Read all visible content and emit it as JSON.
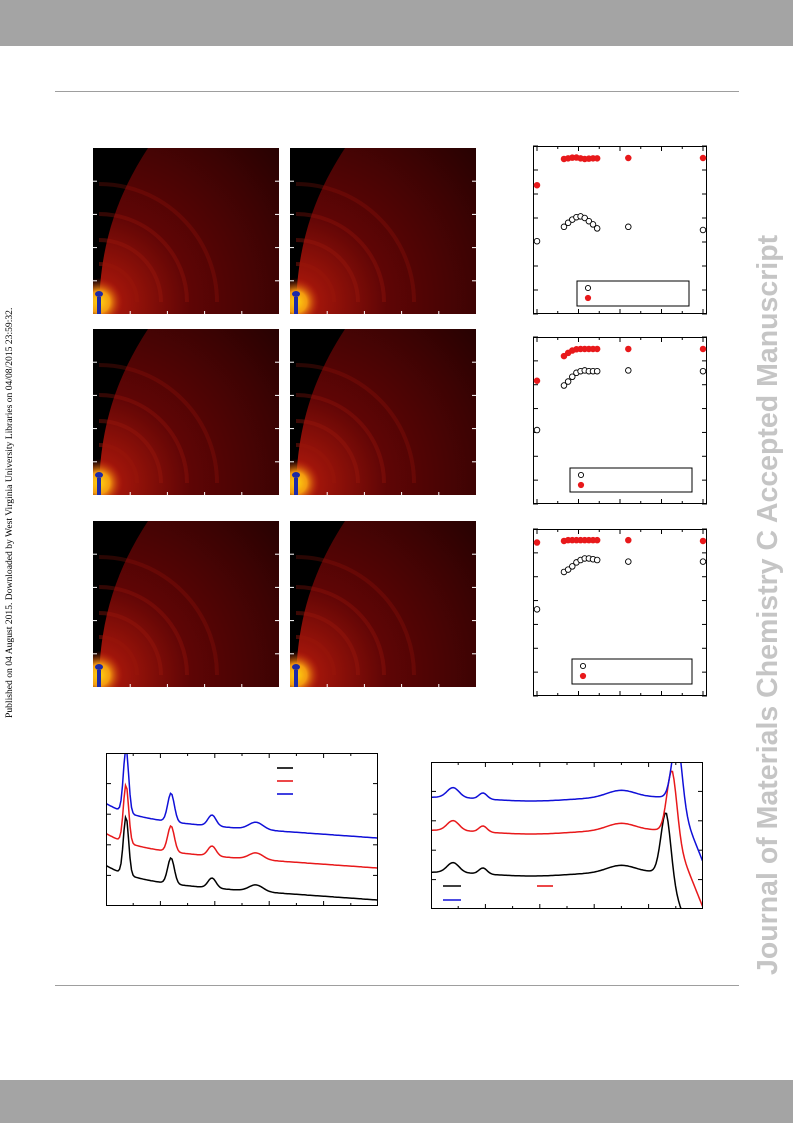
{
  "header": {
    "sidebar_note": "Published on 04 August 2015. Downloaded by West Virginia University Libraries on 04/08/2015 23:59:32.",
    "watermark": "Journal of Materials Chemistry C Accepted Manuscript"
  },
  "figure": {
    "giwaxs_panels": [
      {
        "row": 1,
        "col": 1,
        "colors": [
          "#000000",
          "#5e0505",
          "#b61a0c",
          "#ffd40f",
          "#1c2aa7"
        ]
      },
      {
        "row": 1,
        "col": 2,
        "colors": [
          "#000000",
          "#5e0505",
          "#b61a0c",
          "#ffd40f",
          "#1c2aa7"
        ]
      },
      {
        "row": 2,
        "col": 1,
        "colors": [
          "#000000",
          "#5e0505",
          "#b61a0c",
          "#ffd40f",
          "#1c2aa7"
        ]
      },
      {
        "row": 2,
        "col": 2,
        "colors": [
          "#000000",
          "#5e0505",
          "#b61a0c",
          "#ffd40f",
          "#1c2aa7"
        ]
      },
      {
        "row": 3,
        "col": 1,
        "colors": [
          "#000000",
          "#5e0505",
          "#b61a0c",
          "#ffd40f",
          "#1c2aa7"
        ]
      },
      {
        "row": 3,
        "col": 2,
        "colors": [
          "#000000",
          "#5e0505",
          "#b61a0c",
          "#ffd40f",
          "#1c2aa7"
        ]
      }
    ]
  },
  "chart_data": [
    {
      "type": "scatter",
      "panel": "row-1",
      "series": [
        {
          "name": "",
          "marker": "filled",
          "color": "#e8191b",
          "x": [
            0,
            1.3,
            1.5,
            1.7,
            1.9,
            2.1,
            2.3,
            2.5,
            2.7,
            2.9,
            4.4,
            8
          ],
          "y": [
            0.78,
            0.944,
            0.948,
            0.952,
            0.953,
            0.948,
            0.944,
            0.946,
            0.948,
            0.948,
            0.95,
            0.95
          ]
        },
        {
          "name": "",
          "marker": "open",
          "color": "#000000",
          "x": [
            0,
            1.3,
            1.5,
            1.7,
            1.9,
            2.1,
            2.3,
            2.5,
            2.7,
            2.9,
            4.4,
            8
          ],
          "y": [
            0.43,
            0.52,
            0.545,
            0.565,
            0.58,
            0.585,
            0.575,
            0.555,
            0.535,
            0.51,
            0.52,
            0.5
          ]
        }
      ],
      "xlim": [
        0,
        8
      ],
      "ylim": [
        0,
        1
      ],
      "legend": "bottom-right"
    },
    {
      "type": "scatter",
      "panel": "row-2",
      "series": [
        {
          "name": "",
          "marker": "filled",
          "color": "#e8191b",
          "x": [
            0,
            1.3,
            1.5,
            1.7,
            1.9,
            2.1,
            2.3,
            2.5,
            2.7,
            2.9,
            4.4,
            8
          ],
          "y": [
            0.75,
            0.905,
            0.925,
            0.94,
            0.948,
            0.95,
            0.95,
            0.95,
            0.95,
            0.95,
            0.95,
            0.95
          ]
        },
        {
          "name": "",
          "marker": "open",
          "color": "#000000",
          "x": [
            0,
            1.3,
            1.5,
            1.7,
            1.9,
            2.1,
            2.3,
            2.5,
            2.7,
            2.9,
            4.4,
            8
          ],
          "y": [
            0.44,
            0.72,
            0.745,
            0.775,
            0.8,
            0.81,
            0.815,
            0.81,
            0.81,
            0.81,
            0.815,
            0.81
          ]
        }
      ],
      "xlim": [
        0,
        8
      ],
      "ylim": [
        0,
        1
      ],
      "legend": "bottom-right"
    },
    {
      "type": "scatter",
      "panel": "row-3",
      "series": [
        {
          "name": "",
          "marker": "filled",
          "color": "#e8191b",
          "x": [
            0,
            1.3,
            1.5,
            1.7,
            1.9,
            2.1,
            2.3,
            2.5,
            2.7,
            2.9,
            4.4,
            8
          ],
          "y": [
            0.94,
            0.95,
            0.955,
            0.955,
            0.955,
            0.955,
            0.955,
            0.955,
            0.955,
            0.955,
            0.955,
            0.95
          ]
        },
        {
          "name": "",
          "marker": "open",
          "color": "#000000",
          "x": [
            0,
            1.3,
            1.5,
            1.7,
            1.9,
            2.1,
            2.3,
            2.5,
            2.7,
            2.9,
            4.4,
            8
          ],
          "y": [
            0.52,
            0.755,
            0.77,
            0.79,
            0.815,
            0.83,
            0.84,
            0.84,
            0.835,
            0.83,
            0.82,
            0.82
          ]
        }
      ],
      "xlim": [
        0,
        8
      ],
      "ylim": [
        0,
        1
      ],
      "legend": "bottom-right"
    },
    {
      "type": "line",
      "panel": "bottom-left",
      "series": [
        {
          "name": "",
          "color": "#000000"
        },
        {
          "name": "",
          "color": "#e8191b"
        },
        {
          "name": "",
          "color": "#1010d8"
        }
      ],
      "legend": "top-right"
    },
    {
      "type": "line",
      "panel": "bottom-right",
      "series": [
        {
          "name": "",
          "color": "#000000"
        },
        {
          "name": "",
          "color": "#e8191b"
        },
        {
          "name": "",
          "color": "#1010d8"
        }
      ],
      "legend": "bottom-left"
    }
  ]
}
